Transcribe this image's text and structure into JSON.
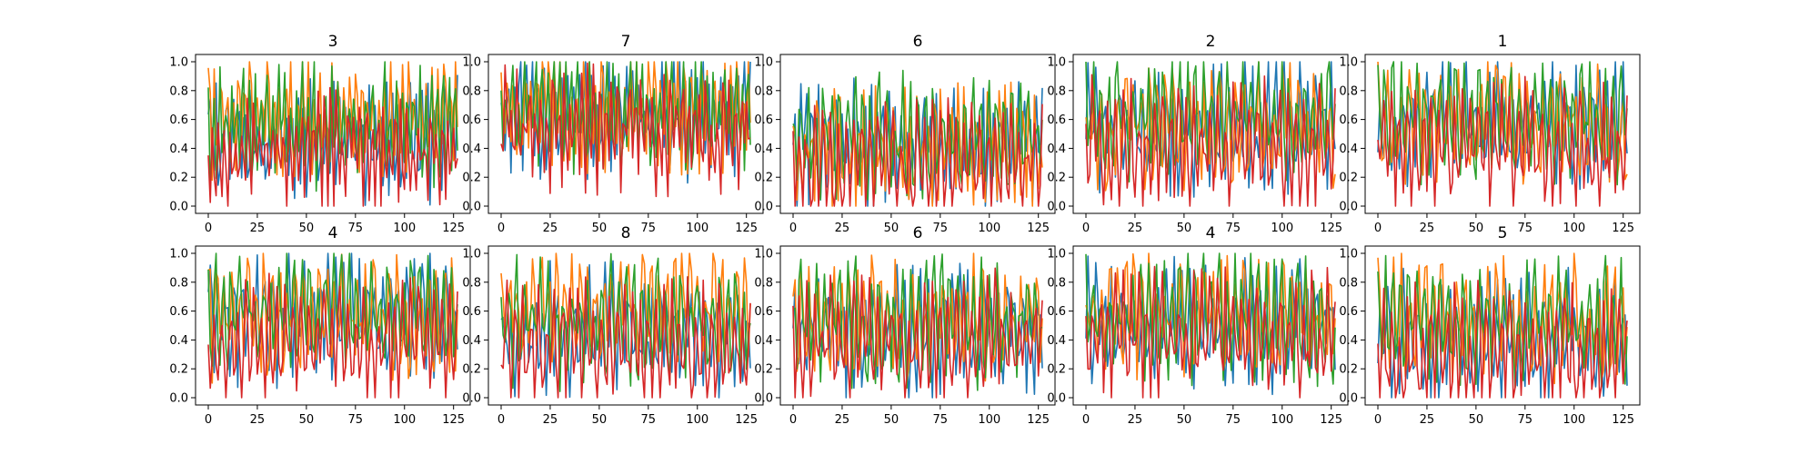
{
  "chart_data": {
    "type": "line",
    "layout": {
      "rows": 2,
      "cols": 5
    },
    "n_points": 128,
    "xlim": [
      0,
      127
    ],
    "ylim": [
      0,
      1
    ],
    "xticks": [
      0,
      25,
      50,
      75,
      100,
      125
    ],
    "yticks": [
      0.0,
      0.2,
      0.4,
      0.6,
      0.8,
      1.0
    ],
    "ytick_labels": [
      "0.0",
      "0.2",
      "0.4",
      "0.6",
      "0.8",
      "1.0"
    ],
    "grid": false,
    "legend": "none",
    "series_colors": [
      "#1f77b4",
      "#ff7f0e",
      "#2ca02c",
      "#d62728"
    ],
    "panels": [
      {
        "title": "3",
        "levels": [
          0.45,
          0.62,
          0.55,
          0.38
        ]
      },
      {
        "title": "7",
        "levels": [
          0.62,
          0.68,
          0.62,
          0.55
        ]
      },
      {
        "title": "6",
        "levels": [
          0.42,
          0.4,
          0.48,
          0.28
        ]
      },
      {
        "title": "2",
        "levels": [
          0.55,
          0.55,
          0.62,
          0.42
        ]
      },
      {
        "title": "1",
        "levels": [
          0.55,
          0.58,
          0.62,
          0.4
        ]
      },
      {
        "title": "4",
        "levels": [
          0.55,
          0.55,
          0.62,
          0.4
        ]
      },
      {
        "title": "8",
        "levels": [
          0.45,
          0.62,
          0.52,
          0.35
        ]
      },
      {
        "title": "6",
        "levels": [
          0.48,
          0.55,
          0.52,
          0.4
        ]
      },
      {
        "title": "4",
        "levels": [
          0.5,
          0.58,
          0.55,
          0.42
        ]
      },
      {
        "title": "5",
        "levels": [
          0.42,
          0.55,
          0.52,
          0.32
        ]
      }
    ]
  }
}
